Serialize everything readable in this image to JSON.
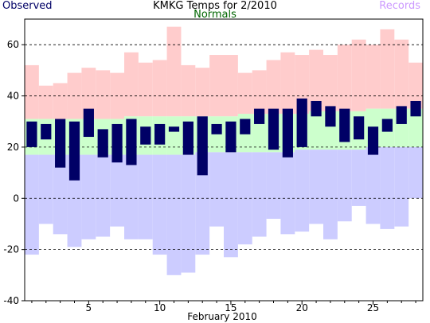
{
  "chart_data": {
    "type": "bar",
    "title": "KMKG Temps for 2/2010",
    "xlabel": "February 2010",
    "ylabel": "",
    "legend": [
      "Observed",
      "Normals",
      "Records"
    ],
    "legend_placement": "top",
    "colors": {
      "Observed": "#000066",
      "Normals": "#006600",
      "Records": "#cc99ff",
      "record_high_fill": "#ffcccc",
      "normal_fill": "#ccffcc",
      "record_low_fill": "#ccccff",
      "observed_fill": "#000066"
    },
    "ylim": [
      -40,
      70
    ],
    "yticks": [
      -40,
      -20,
      0,
      20,
      40,
      60
    ],
    "xlim": [
      0.5,
      28.5
    ],
    "xticks": [
      5,
      10,
      15,
      20,
      25
    ],
    "grid": "horizontal dashed",
    "days": [
      1,
      2,
      3,
      4,
      5,
      6,
      7,
      8,
      9,
      10,
      11,
      12,
      13,
      14,
      15,
      16,
      17,
      18,
      19,
      20,
      21,
      22,
      23,
      24,
      25,
      26,
      27,
      28
    ],
    "series": [
      {
        "name": "Records",
        "role": "record_high",
        "values": [
          52,
          44,
          45,
          49,
          51,
          50,
          49,
          57,
          53,
          54,
          67,
          52,
          51,
          56,
          56,
          49,
          50,
          54,
          57,
          56,
          58,
          56,
          60,
          62,
          60,
          66,
          62,
          53
        ]
      },
      {
        "name": "Normals",
        "role": "normal_high",
        "values": [
          31,
          31,
          31,
          31,
          31,
          31,
          31,
          32,
          32,
          32,
          32,
          32,
          32,
          32,
          32,
          33,
          33,
          33,
          33,
          33,
          34,
          34,
          34,
          34,
          35,
          35,
          35,
          35
        ]
      },
      {
        "name": "Normals",
        "role": "normal_low",
        "values": [
          17,
          17,
          17,
          17,
          17,
          17,
          17,
          17,
          17,
          17,
          17,
          17,
          18,
          18,
          18,
          18,
          18,
          18,
          18,
          19,
          19,
          19,
          19,
          19,
          20,
          20,
          20,
          20
        ]
      },
      {
        "name": "Records",
        "role": "record_low",
        "values": [
          -22,
          -10,
          -14,
          -19,
          -16,
          -15,
          -11,
          -16,
          -16,
          -22,
          -30,
          -29,
          -22,
          -11,
          -23,
          -18,
          -15,
          -8,
          -14,
          -13,
          -10,
          -16,
          -9,
          -3,
          -10,
          -12,
          -11,
          0
        ]
      },
      {
        "name": "Observed",
        "role": "observed_high",
        "values": [
          30,
          29,
          31,
          30,
          35,
          27,
          29,
          31,
          28,
          29,
          28,
          30,
          32,
          29,
          30,
          31,
          35,
          35,
          35,
          39,
          38,
          36,
          35,
          32,
          28,
          31,
          36,
          38
        ]
      },
      {
        "name": "Observed",
        "role": "observed_low",
        "values": [
          20,
          23,
          12,
          7,
          24,
          16,
          14,
          13,
          21,
          21,
          26,
          17,
          9,
          25,
          18,
          25,
          29,
          19,
          16,
          20,
          32,
          28,
          22,
          23,
          17,
          26,
          29,
          32
        ]
      }
    ]
  }
}
